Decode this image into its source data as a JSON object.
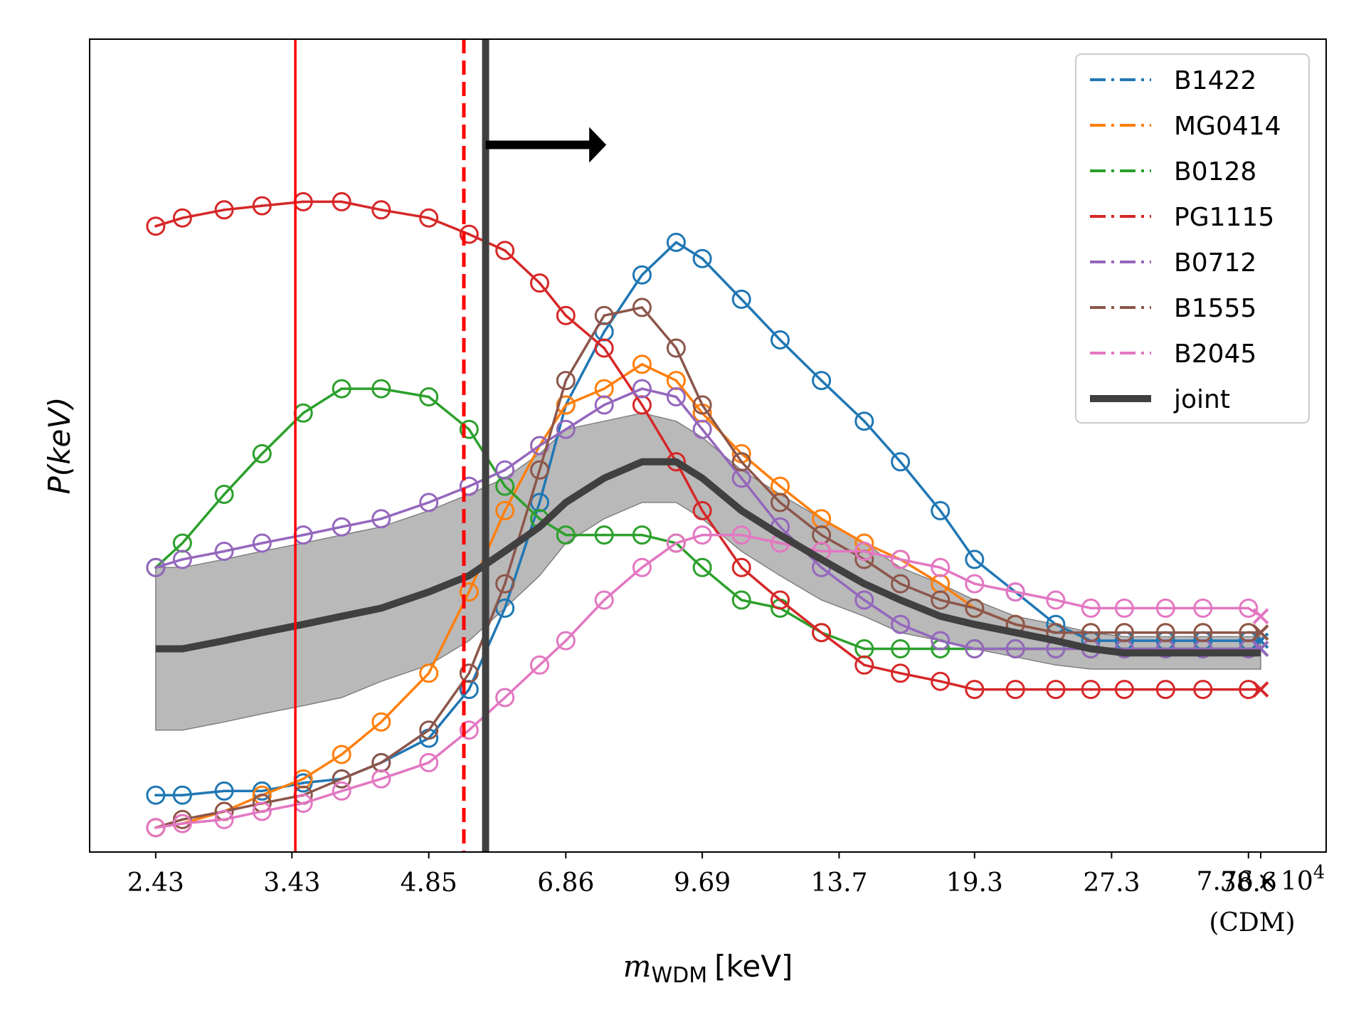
{
  "chart_data": {
    "type": "line",
    "title": "",
    "ylabel": "P(keV)",
    "xlabel": {
      "symbol": "m",
      "subscript": "WDM",
      "unit": "[keV]"
    },
    "x_tick_labels": [
      "2.43",
      "3.43",
      "4.85",
      "6.86",
      "9.69",
      "13.7",
      "19.3",
      "27.3",
      "38.6"
    ],
    "x_cdm_tick": {
      "mantissa": "7.76",
      "times": "×",
      "base": "10",
      "exponent": "4",
      "note": "(CDM)"
    },
    "x_range_log10_keV": [
      0.313,
      1.672
    ],
    "y_range": [
      0,
      1
    ],
    "grid": false,
    "legend_position": "top-right",
    "x_keV": [
      2.43,
      2.6,
      2.89,
      3.18,
      3.53,
      3.89,
      4.3,
      4.85,
      5.37,
      5.88,
      6.42,
      6.86,
      7.56,
      8.32,
      9.07,
      9.69,
      10.7,
      11.8,
      13.1,
      14.6,
      16.0,
      17.7,
      19.3,
      21.4,
      23.7,
      25.9,
      28.2,
      31.3,
      34.4,
      38.6
    ],
    "x_cdm_keV": 77600,
    "series": [
      {
        "name": "B1422",
        "color": "#1f77b4",
        "values": [
          0.07,
          0.07,
          0.075,
          0.075,
          0.085,
          0.09,
          0.11,
          0.14,
          0.2,
          0.3,
          0.43,
          0.55,
          0.64,
          0.71,
          0.75,
          0.73,
          0.68,
          0.63,
          0.58,
          0.53,
          0.48,
          0.42,
          0.36,
          0.32,
          0.28,
          0.26,
          0.26,
          0.26,
          0.26,
          0.26
        ],
        "cdm": 0.26
      },
      {
        "name": "MG0414",
        "color": "#ff7f0e",
        "values": [
          0.03,
          0.035,
          0.05,
          0.07,
          0.09,
          0.12,
          0.16,
          0.22,
          0.32,
          0.42,
          0.5,
          0.55,
          0.57,
          0.6,
          0.58,
          0.54,
          0.49,
          0.45,
          0.41,
          0.38,
          0.36,
          0.33,
          0.3,
          0.28,
          0.27,
          0.27,
          0.27,
          0.27,
          0.27,
          0.27
        ],
        "cdm": 0.27
      },
      {
        "name": "B0128",
        "color": "#2ca02c",
        "values": [
          0.35,
          0.38,
          0.44,
          0.49,
          0.54,
          0.57,
          0.57,
          0.56,
          0.52,
          0.45,
          0.41,
          0.39,
          0.39,
          0.39,
          0.38,
          0.35,
          0.31,
          0.3,
          0.27,
          0.25,
          0.25,
          0.25,
          0.25,
          0.25,
          0.25,
          0.25,
          0.25,
          0.25,
          0.25,
          0.25
        ],
        "cdm": 0.25
      },
      {
        "name": "PG1115",
        "color": "#d62728",
        "values": [
          0.77,
          0.78,
          0.79,
          0.795,
          0.8,
          0.8,
          0.79,
          0.78,
          0.76,
          0.74,
          0.7,
          0.66,
          0.62,
          0.55,
          0.48,
          0.42,
          0.35,
          0.31,
          0.27,
          0.23,
          0.22,
          0.21,
          0.2,
          0.2,
          0.2,
          0.2,
          0.2,
          0.2,
          0.2,
          0.2
        ],
        "cdm": 0.2
      },
      {
        "name": "B0712",
        "color": "#9467bd",
        "values": [
          0.35,
          0.36,
          0.37,
          0.38,
          0.39,
          0.4,
          0.41,
          0.43,
          0.45,
          0.47,
          0.5,
          0.52,
          0.55,
          0.57,
          0.56,
          0.52,
          0.46,
          0.4,
          0.35,
          0.31,
          0.28,
          0.26,
          0.25,
          0.25,
          0.25,
          0.25,
          0.25,
          0.25,
          0.25,
          0.25
        ],
        "cdm": 0.25
      },
      {
        "name": "B1555",
        "color": "#8c564b",
        "values": [
          0.03,
          0.04,
          0.05,
          0.06,
          0.07,
          0.09,
          0.11,
          0.15,
          0.22,
          0.33,
          0.47,
          0.58,
          0.66,
          0.67,
          0.62,
          0.55,
          0.48,
          0.43,
          0.39,
          0.36,
          0.33,
          0.31,
          0.3,
          0.28,
          0.27,
          0.27,
          0.27,
          0.27,
          0.27,
          0.27
        ],
        "cdm": 0.27
      },
      {
        "name": "B2045",
        "color": "#e377c2",
        "values": [
          0.03,
          0.035,
          0.04,
          0.05,
          0.06,
          0.075,
          0.09,
          0.11,
          0.15,
          0.19,
          0.23,
          0.26,
          0.31,
          0.35,
          0.38,
          0.39,
          0.39,
          0.38,
          0.37,
          0.37,
          0.36,
          0.35,
          0.33,
          0.32,
          0.31,
          0.3,
          0.3,
          0.3,
          0.3,
          0.3
        ],
        "cdm": 0.29
      },
      {
        "name": "joint",
        "color": "#404040",
        "values": [
          0.25,
          0.25,
          0.26,
          0.27,
          0.28,
          0.29,
          0.3,
          0.32,
          0.34,
          0.37,
          0.4,
          0.43,
          0.46,
          0.48,
          0.48,
          0.46,
          0.42,
          0.39,
          0.36,
          0.33,
          0.31,
          0.29,
          0.28,
          0.27,
          0.26,
          0.25,
          0.245,
          0.245,
          0.245,
          0.245
        ],
        "cdm": 0.245
      }
    ],
    "joint_band": {
      "lower": [
        0.15,
        0.15,
        0.16,
        0.17,
        0.18,
        0.19,
        0.21,
        0.23,
        0.26,
        0.3,
        0.34,
        0.38,
        0.41,
        0.43,
        0.43,
        0.41,
        0.37,
        0.34,
        0.31,
        0.29,
        0.27,
        0.26,
        0.25,
        0.24,
        0.23,
        0.225,
        0.225,
        0.225,
        0.225,
        0.225
      ],
      "upper": [
        0.35,
        0.35,
        0.36,
        0.37,
        0.38,
        0.39,
        0.4,
        0.42,
        0.44,
        0.46,
        0.49,
        0.52,
        0.53,
        0.54,
        0.53,
        0.51,
        0.47,
        0.44,
        0.41,
        0.38,
        0.35,
        0.33,
        0.31,
        0.29,
        0.28,
        0.27,
        0.265,
        0.265,
        0.265,
        0.265
      ],
      "cdm_lower": 0.225,
      "cdm_upper": 0.265
    },
    "vertical_lines": [
      {
        "name": "red-solid-limit",
        "x_keV": 3.46,
        "color": "#ff0000",
        "style": "solid"
      },
      {
        "name": "red-dashed-limit",
        "x_keV": 5.3,
        "color": "#ff0000",
        "style": "dashed"
      },
      {
        "name": "joint-lower-limit",
        "x_keV": 5.6,
        "color": "#404040",
        "style": "solid"
      }
    ],
    "arrow": {
      "from_keV": 5.6,
      "to_keV": 7.6,
      "y": 0.87,
      "direction": "right"
    }
  }
}
